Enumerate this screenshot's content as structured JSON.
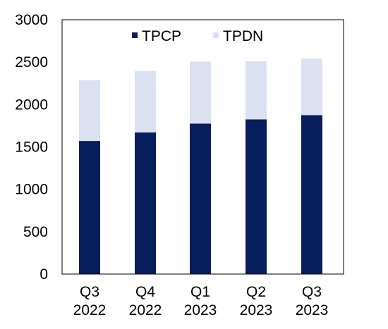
{
  "chart_data": {
    "type": "bar",
    "stacked": true,
    "categories": [
      [
        "Q3",
        "2022"
      ],
      [
        "Q4",
        "2022"
      ],
      [
        "Q1",
        "2023"
      ],
      [
        "Q2",
        "2023"
      ],
      [
        "Q3",
        "2023"
      ]
    ],
    "series": [
      {
        "name": "TPCP",
        "color": "#061e5c",
        "values": [
          1570,
          1670,
          1775,
          1825,
          1875
        ]
      },
      {
        "name": "TPDN",
        "color": "#dbe1f1",
        "values": [
          715,
          725,
          730,
          685,
          665
        ]
      }
    ],
    "ylim": [
      0,
      3000
    ],
    "yticks": [
      "0",
      "500",
      "1000",
      "1500",
      "2000",
      "2500",
      "3000"
    ],
    "grid": false,
    "legend": "top-center",
    "title": "",
    "xlabel": "",
    "ylabel": ""
  }
}
